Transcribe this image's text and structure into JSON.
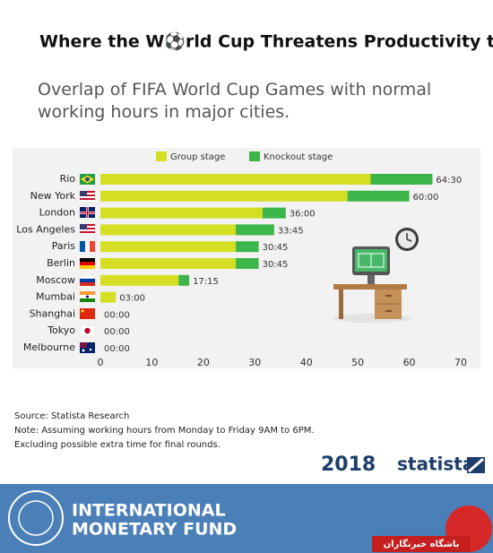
{
  "chart_data": {
    "type": "bar",
    "orientation": "horizontal",
    "stacked": true,
    "title": "Where the W⚽rld Cup Threatens Productivity the Most",
    "subtitle": "Overlap of FIFA World Cup Games with normal working hours in major cities.",
    "categories": [
      "Rio",
      "New York",
      "London",
      "Los Angeles",
      "Paris",
      "Berlin",
      "Moscow",
      "Mumbai",
      "Shanghai",
      "Tokyo",
      "Melbourne"
    ],
    "series": [
      {
        "name": "Group stage",
        "color": "#d4df24",
        "values": [
          52.5,
          48,
          31.5,
          26.3,
          26.3,
          26.3,
          15.2,
          3,
          0,
          0,
          0
        ]
      },
      {
        "name": "Knockout stage",
        "color": "#3cb54a",
        "values": [
          12,
          12,
          4.5,
          7.45,
          4.45,
          4.45,
          2.05,
          0,
          0,
          0,
          0
        ]
      }
    ],
    "totals": [
      64.5,
      60,
      36,
      33.75,
      30.75,
      30.75,
      17.25,
      3,
      0,
      0,
      0
    ],
    "total_labels": [
      "64:30",
      "60:00",
      "36:00",
      "33:45",
      "30:45",
      "30:45",
      "17:15",
      "03:00",
      "00:00",
      "00:00",
      "00:00"
    ],
    "xlim": [
      0,
      70
    ],
    "xticks": [
      0,
      10,
      20,
      30,
      40,
      50,
      60,
      70
    ],
    "grid": false,
    "legend": "top",
    "source": "Source: Statista Research",
    "notes": [
      "Note: Assuming working hours from Monday to Friday 9AM to 6PM.",
      "Excluding possible extra time for final rounds."
    ]
  },
  "branding": {
    "year": "2018",
    "statista": "statista",
    "imf_line1": "INTERNATIONAL",
    "imf_line2": "MONETARY FUND",
    "watermark": "باشگاه خبرنگاران"
  }
}
